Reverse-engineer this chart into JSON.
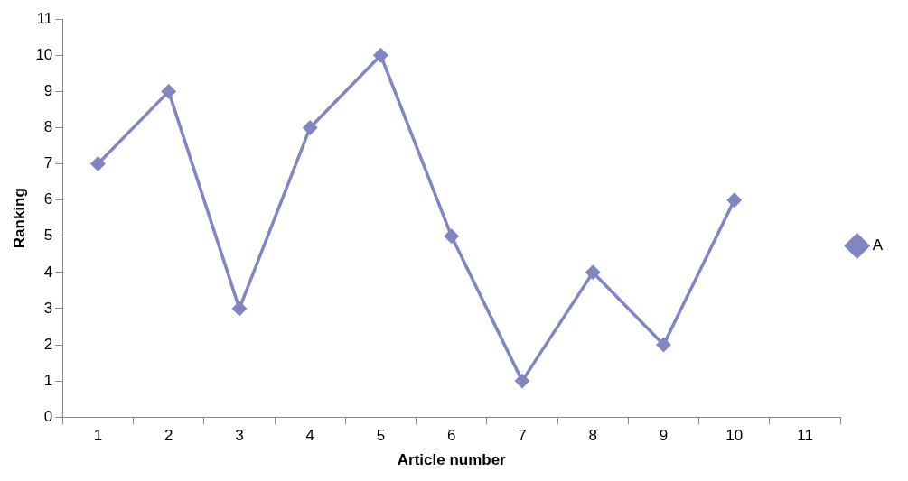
{
  "chart_data": {
    "type": "line",
    "xlabel": "Article number",
    "ylabel": "Ranking",
    "categories": [
      "1",
      "2",
      "3",
      "4",
      "5",
      "6",
      "7",
      "8",
      "9",
      "10",
      "11"
    ],
    "series": [
      {
        "name": "A",
        "color": "#7f86c2",
        "values": [
          7,
          9,
          3,
          8,
          10,
          5,
          1,
          4,
          2,
          6,
          null
        ]
      }
    ],
    "ylim": [
      0,
      11
    ],
    "yticks": [
      0,
      1,
      2,
      3,
      4,
      5,
      6,
      7,
      8,
      9,
      10,
      11
    ],
    "grid": false,
    "legend": "right",
    "marker": "diamond",
    "line_style": "solid"
  }
}
